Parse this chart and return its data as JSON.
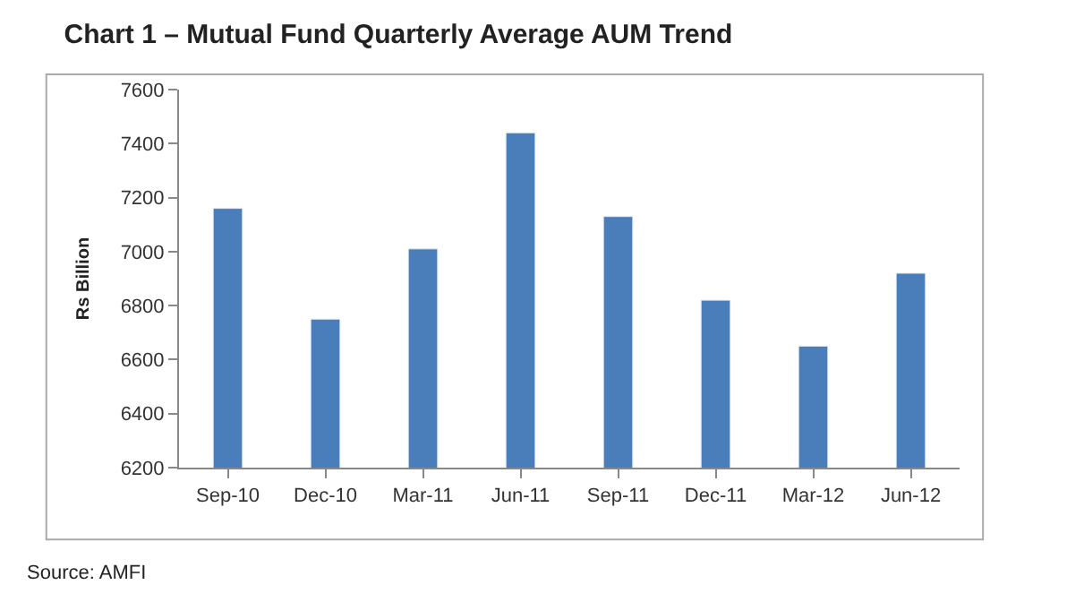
{
  "chart_data": {
    "type": "bar",
    "title": "Chart 1 – Mutual Fund Quarterly Average AUM Trend",
    "ylabel": "Rs Billion",
    "categories": [
      "Sep-10",
      "Dec-10",
      "Mar-11",
      "Jun-11",
      "Sep-11",
      "Dec-11",
      "Mar-12",
      "Jun-12"
    ],
    "values": [
      7160,
      6750,
      7010,
      7440,
      7130,
      6820,
      6650,
      6920
    ],
    "color": "#4a7ebb",
    "ylim": [
      6200,
      7600
    ],
    "yticks": [
      6200,
      6400,
      6600,
      6800,
      7000,
      7200,
      7400,
      7600
    ],
    "grid": false,
    "legend": false,
    "annotations": [
      "Source: AMFI"
    ]
  }
}
